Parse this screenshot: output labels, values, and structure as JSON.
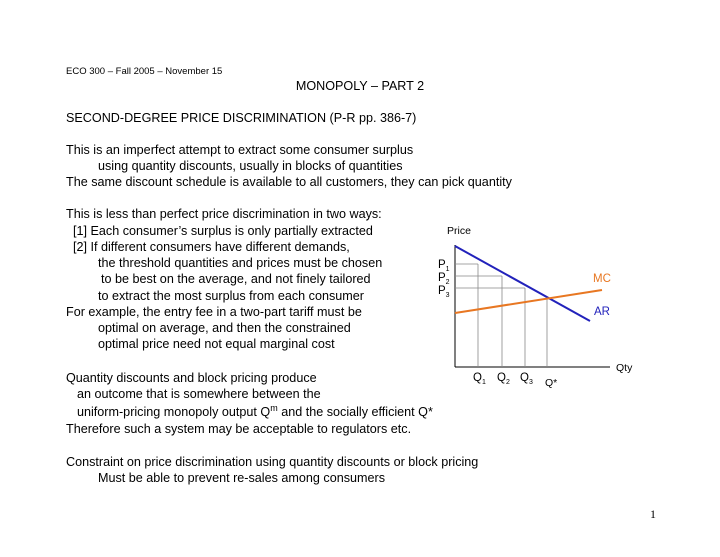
{
  "header": {
    "course": "ECO 300 – Fall 2005 – November 15",
    "title": "MONOPOLY – PART 2"
  },
  "section": {
    "heading": "SECOND-DEGREE PRICE DISCRIMINATION (P-R pp. 386-7)"
  },
  "body": {
    "p1_l1": "This is an imperfect attempt to extract some consumer surplus",
    "p1_l2": "using quantity discounts, usually in blocks of quantities",
    "p1_l3": "The same discount schedule is available to all customers, they can pick quantity",
    "p2_l1": "This is less than perfect price discrimination in two ways:",
    "p2_l2": "[1] Each consumer’s surplus is only partially extracted",
    "p2_l3": "[2] If different consumers have different demands,",
    "p2_l4": "the threshold quantities and prices must be chosen",
    "p2_l5": "to be best on the average, and not finely tailored",
    "p2_l6": "to extract the most surplus from each consumer",
    "p2_l7": "For example, the entry fee in a two-part tariff must be",
    "p2_l8": "optimal on average, and then the constrained",
    "p2_l9": "optimal price need not equal marginal cost",
    "p3_l1": "Quantity discounts and block pricing produce",
    "p3_l2": "an outcome that is somewhere between the",
    "p3_l3a": "uniform-pricing monopoly output Q",
    "p3_l3sup": "m",
    "p3_l3b": " and the socially efficient Q*",
    "p3_l4": "Therefore such a system may be acceptable to regulators etc.",
    "p4_l1": "Constraint on price discrimination using quantity discounts or block pricing",
    "p4_l2": "Must be able to prevent re-sales among consumers"
  },
  "diagram": {
    "y_axis_label": "Price",
    "x_axis_label": "Qty",
    "price_labels": [
      {
        "main": "P",
        "sub": "1"
      },
      {
        "main": "P",
        "sub": "2"
      },
      {
        "main": "P",
        "sub": "3"
      }
    ],
    "qty_labels": [
      {
        "main": "Q",
        "sub": "1"
      },
      {
        "main": "Q",
        "sub": "2"
      },
      {
        "main": "Q",
        "sub": "3"
      }
    ],
    "qstar_label": "Q*",
    "mc_label": "MC",
    "ar_label": "AR",
    "colors": {
      "mc": "#E87722",
      "ar": "#2222BB",
      "axes": "#000000",
      "guides": "#888888"
    }
  },
  "footer": {
    "page_number": "1"
  }
}
